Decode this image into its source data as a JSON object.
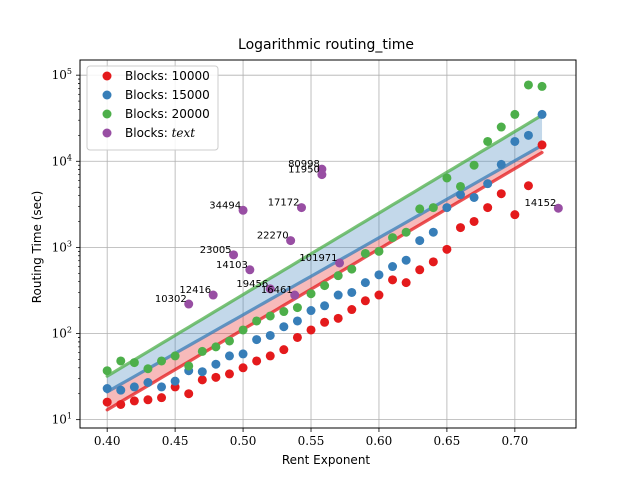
{
  "chart_data": {
    "type": "scatter",
    "title": "Logarithmic routing_time",
    "xlabel": "Rent Exponent",
    "ylabel": "Routing Time (sec)",
    "xlim": [
      0.38,
      0.745
    ],
    "ylim": [
      8,
      150000
    ],
    "yscale": "log",
    "grid": true,
    "legend_position": "top-left",
    "xticks": [
      {
        "value": 0.4,
        "label": "0.40"
      },
      {
        "value": 0.45,
        "label": "0.45"
      },
      {
        "value": 0.5,
        "label": "0.50"
      },
      {
        "value": 0.55,
        "label": "0.55"
      },
      {
        "value": 0.6,
        "label": "0.60"
      },
      {
        "value": 0.65,
        "label": "0.65"
      },
      {
        "value": 0.7,
        "label": "0.70"
      }
    ],
    "yticks": [
      {
        "value": 10,
        "base": "10",
        "exp": "1"
      },
      {
        "value": 100,
        "base": "10",
        "exp": "2"
      },
      {
        "value": 1000,
        "base": "10",
        "exp": "3"
      },
      {
        "value": 10000,
        "base": "10",
        "exp": "4"
      },
      {
        "value": 100000,
        "base": "10",
        "exp": "5"
      }
    ],
    "series": [
      {
        "name": "Blocks: 10000",
        "color": "#e41a1c",
        "x": [
          0.4,
          0.41,
          0.42,
          0.43,
          0.44,
          0.45,
          0.46,
          0.47,
          0.48,
          0.49,
          0.5,
          0.51,
          0.52,
          0.53,
          0.54,
          0.55,
          0.56,
          0.57,
          0.58,
          0.59,
          0.6,
          0.61,
          0.62,
          0.63,
          0.64,
          0.65,
          0.66,
          0.67,
          0.68,
          0.69,
          0.7,
          0.71,
          0.72
        ],
        "y": [
          16,
          15,
          16.5,
          17,
          18,
          24,
          20,
          29,
          31,
          34,
          40,
          48,
          55,
          65,
          90,
          110,
          135,
          150,
          190,
          240,
          280,
          420,
          390,
          550,
          680,
          950,
          1700,
          2000,
          2900,
          4200,
          2400,
          5200,
          15500
        ],
        "fit": {
          "a": 13,
          "k": 21.5
        },
        "band": {
          "low": 1.0,
          "high": 1.32
        }
      },
      {
        "name": "Blocks: 15000",
        "color": "#377eb8",
        "x": [
          0.4,
          0.41,
          0.42,
          0.43,
          0.44,
          0.45,
          0.46,
          0.47,
          0.48,
          0.49,
          0.5,
          0.51,
          0.52,
          0.53,
          0.54,
          0.55,
          0.56,
          0.57,
          0.58,
          0.59,
          0.6,
          0.61,
          0.62,
          0.63,
          0.64,
          0.65,
          0.66,
          0.67,
          0.68,
          0.69,
          0.7,
          0.71,
          0.72
        ],
        "y": [
          23,
          22,
          24,
          27,
          24,
          28,
          37,
          36,
          44,
          55,
          58,
          85,
          95,
          120,
          140,
          185,
          210,
          280,
          300,
          390,
          480,
          600,
          710,
          1200,
          1500,
          2900,
          4100,
          3800,
          5500,
          9200,
          17000,
          20000,
          35000
        ],
        "fit": {
          "a": 21,
          "k": 20.6
        }
      },
      {
        "name": "Blocks: 20000",
        "color": "#4daf4a",
        "x": [
          0.4,
          0.41,
          0.42,
          0.43,
          0.44,
          0.45,
          0.46,
          0.47,
          0.48,
          0.49,
          0.5,
          0.51,
          0.52,
          0.53,
          0.54,
          0.55,
          0.56,
          0.57,
          0.58,
          0.59,
          0.6,
          0.61,
          0.62,
          0.63,
          0.64,
          0.65,
          0.66,
          0.67,
          0.68,
          0.69,
          0.7,
          0.71,
          0.72
        ],
        "y": [
          37,
          48,
          46,
          39,
          48,
          55,
          42,
          62,
          70,
          82,
          110,
          140,
          160,
          180,
          200,
          290,
          360,
          470,
          560,
          850,
          900,
          1300,
          1500,
          2800,
          2900,
          6400,
          5100,
          9000,
          17000,
          25000,
          35000,
          77000,
          74000
        ],
        "fit": {
          "a": 32,
          "k": 21.8
        },
        "band": {
          "low": 0.58,
          "high": 1.0
        }
      },
      {
        "name": "Blocks: $text$",
        "color": "#984ea3",
        "points": [
          {
            "x": 0.46,
            "y": 220,
            "label": "10302"
          },
          {
            "x": 0.478,
            "y": 280,
            "label": "12416"
          },
          {
            "x": 0.505,
            "y": 550,
            "label": "14103"
          },
          {
            "x": 0.493,
            "y": 820,
            "label": "23005"
          },
          {
            "x": 0.5,
            "y": 2700,
            "label": "34494"
          },
          {
            "x": 0.52,
            "y": 330,
            "label": "19456"
          },
          {
            "x": 0.538,
            "y": 280,
            "label": "16461"
          },
          {
            "x": 0.535,
            "y": 1200,
            "label": "22270"
          },
          {
            "x": 0.543,
            "y": 2900,
            "label": "17172"
          },
          {
            "x": 0.558,
            "y": 8100,
            "label": "80998"
          },
          {
            "x": 0.558,
            "y": 7000,
            "label": "11950"
          },
          {
            "x": 0.571,
            "y": 660,
            "label": "101971"
          },
          {
            "x": 0.732,
            "y": 2850,
            "label": "14152"
          }
        ]
      }
    ]
  }
}
